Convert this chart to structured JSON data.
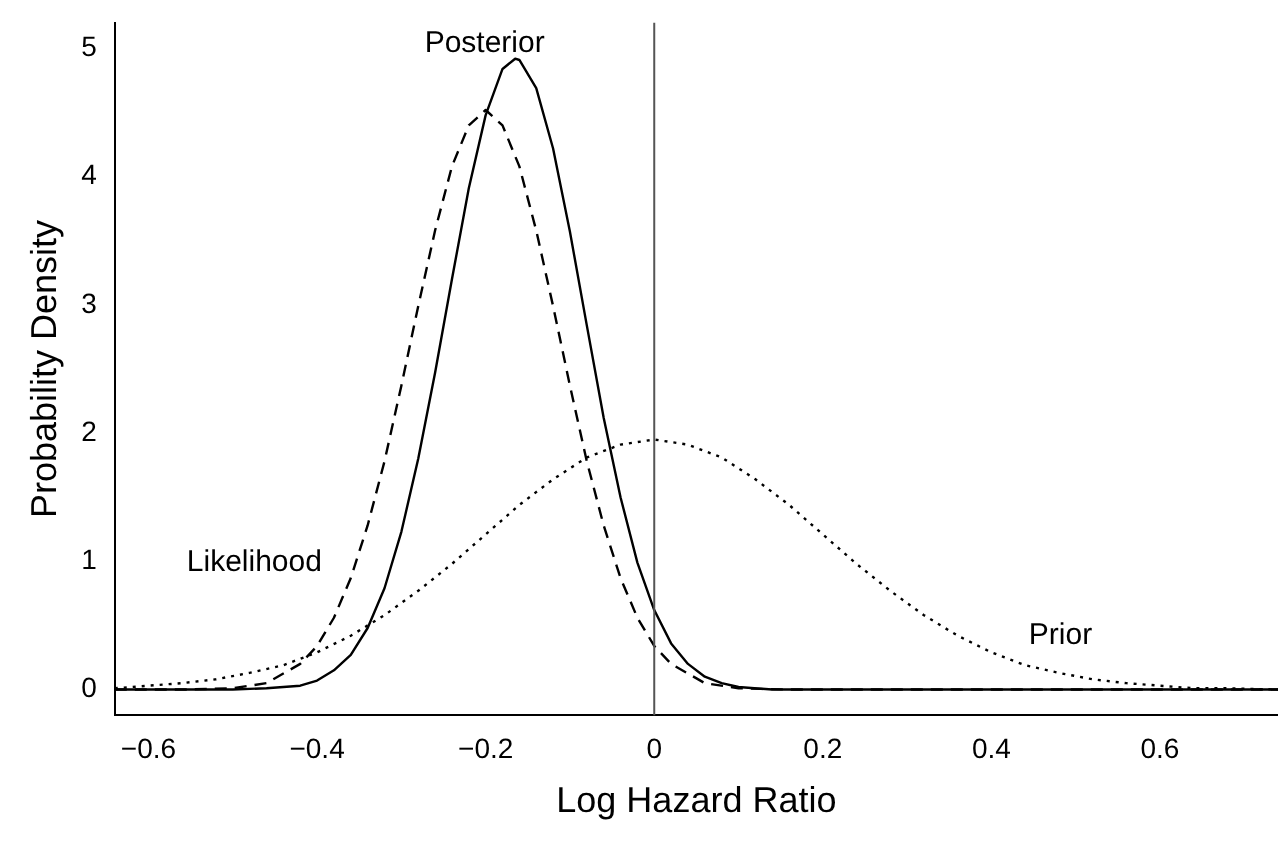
{
  "chart_data": {
    "type": "line",
    "xlabel": "Log Hazard Ratio",
    "ylabel": "Probability Density",
    "xlim": [
      -0.64,
      0.74
    ],
    "ylim": [
      -0.2,
      5.2
    ],
    "xticks": [
      {
        "value": -0.6,
        "label": "−0.6"
      },
      {
        "value": -0.4,
        "label": "−0.4"
      },
      {
        "value": -0.2,
        "label": "−0.2"
      },
      0.0,
      0.2,
      0.4,
      0.6
    ],
    "yticks": [
      0,
      1,
      2,
      3,
      4,
      5
    ],
    "grid": false,
    "legend": false,
    "marker": "none",
    "series": [
      {
        "name": "Posterior",
        "color": "#000000",
        "line_style": "solid",
        "x": [
          -0.64,
          -0.5,
          -0.46,
          -0.42,
          -0.4,
          -0.38,
          -0.36,
          -0.34,
          -0.32,
          -0.3,
          -0.28,
          -0.26,
          -0.24,
          -0.22,
          -0.2,
          -0.18,
          -0.165,
          -0.16,
          -0.14,
          -0.12,
          -0.1,
          -0.08,
          -0.06,
          -0.04,
          -0.02,
          0.0,
          0.02,
          0.04,
          0.06,
          0.08,
          0.1,
          0.14,
          0.74
        ],
        "values": [
          0,
          0,
          0.01,
          0.03,
          0.07,
          0.15,
          0.27,
          0.48,
          0.79,
          1.23,
          1.8,
          2.47,
          3.2,
          3.91,
          4.48,
          4.84,
          4.92,
          4.91,
          4.69,
          4.22,
          3.57,
          2.84,
          2.12,
          1.5,
          0.99,
          0.62,
          0.36,
          0.2,
          0.1,
          0.05,
          0.02,
          0,
          0
        ]
      },
      {
        "name": "Likelihood",
        "color": "#000000",
        "line_style": "dashed",
        "x": [
          -0.64,
          -0.56,
          -0.5,
          -0.46,
          -0.42,
          -0.4,
          -0.38,
          -0.36,
          -0.34,
          -0.32,
          -0.3,
          -0.28,
          -0.26,
          -0.24,
          -0.22,
          -0.2,
          -0.18,
          -0.16,
          -0.14,
          -0.12,
          -0.1,
          -0.08,
          -0.06,
          -0.04,
          -0.02,
          0.0,
          0.02,
          0.06,
          0.1,
          0.16,
          0.74
        ],
        "values": [
          0,
          0,
          0.01,
          0.05,
          0.2,
          0.34,
          0.56,
          0.87,
          1.28,
          1.78,
          2.37,
          2.99,
          3.58,
          4.08,
          4.4,
          4.52,
          4.4,
          4.08,
          3.58,
          2.99,
          2.37,
          1.78,
          1.28,
          0.87,
          0.56,
          0.34,
          0.2,
          0.05,
          0.01,
          0,
          0
        ]
      },
      {
        "name": "Prior",
        "color": "#000000",
        "line_style": "dotted",
        "x": [
          -0.64,
          -0.6,
          -0.56,
          -0.52,
          -0.48,
          -0.44,
          -0.4,
          -0.36,
          -0.32,
          -0.28,
          -0.24,
          -0.2,
          -0.16,
          -0.12,
          -0.08,
          -0.04,
          0.0,
          0.04,
          0.08,
          0.12,
          0.16,
          0.2,
          0.24,
          0.28,
          0.32,
          0.36,
          0.4,
          0.44,
          0.48,
          0.52,
          0.56,
          0.6,
          0.64,
          0.68,
          0.74
        ],
        "values": [
          0.01,
          0.03,
          0.05,
          0.08,
          0.13,
          0.19,
          0.29,
          0.42,
          0.58,
          0.77,
          0.98,
          1.21,
          1.44,
          1.64,
          1.81,
          1.91,
          1.95,
          1.91,
          1.81,
          1.64,
          1.44,
          1.21,
          0.98,
          0.77,
          0.58,
          0.42,
          0.29,
          0.19,
          0.13,
          0.08,
          0.05,
          0.03,
          0.01,
          0.01,
          0
        ]
      }
    ],
    "ref_lines": [
      {
        "axis": "x",
        "value": 0.0,
        "color": "#555555"
      }
    ]
  }
}
